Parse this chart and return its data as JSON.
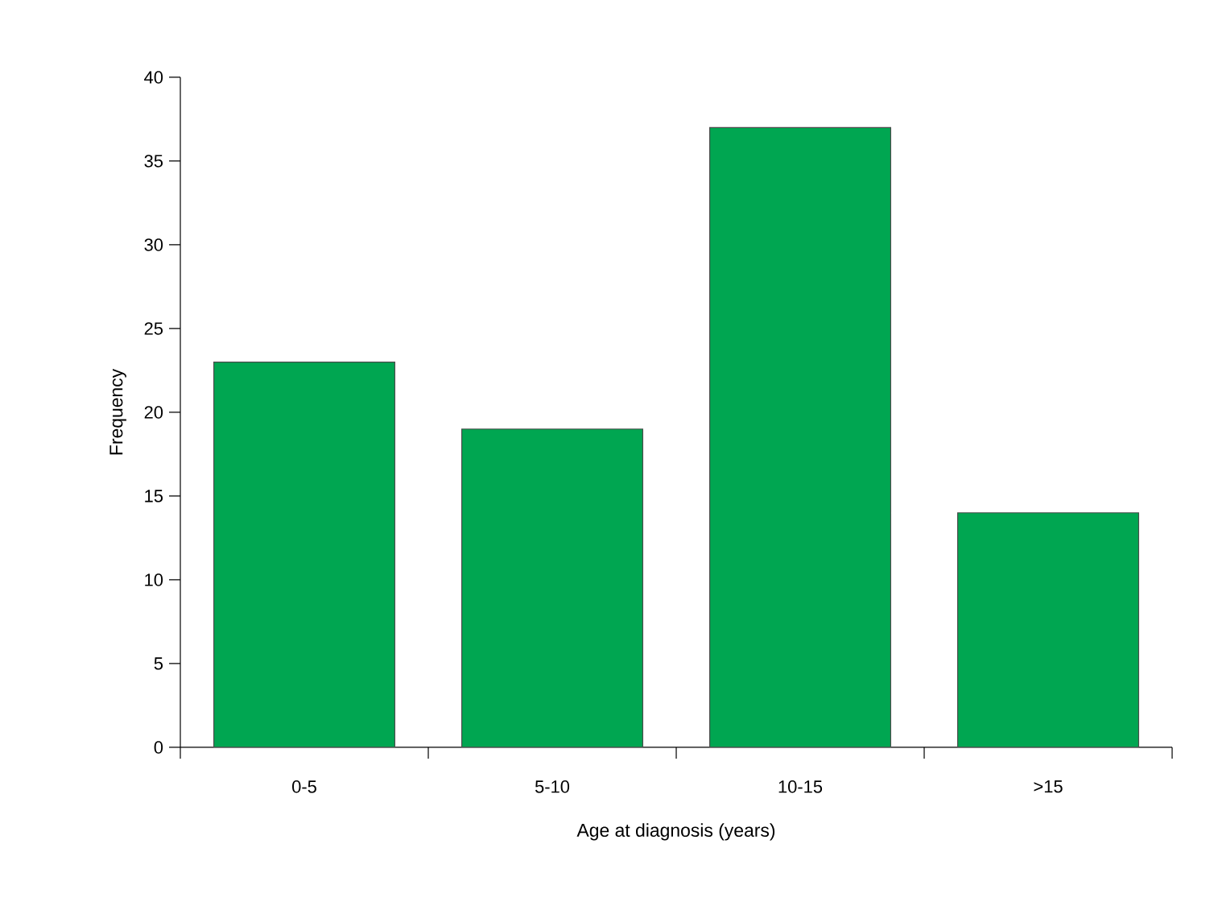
{
  "chart_data": {
    "type": "bar",
    "xlabel": "Age at diagnosis (years)",
    "ylabel": "Frequency",
    "categories": [
      "0-5",
      "5-10",
      "10-15",
      ">15"
    ],
    "values": [
      23,
      19,
      37,
      14
    ],
    "color": "#00a651",
    "ylim": [
      0,
      40
    ],
    "yticks": [
      0,
      5,
      10,
      15,
      20,
      25,
      30,
      35,
      40
    ],
    "grid": false
  }
}
